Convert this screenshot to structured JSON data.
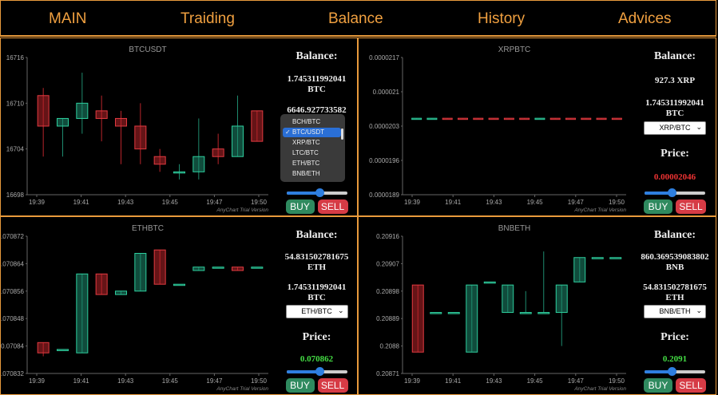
{
  "nav": [
    "MAIN",
    "Traiding",
    "Balance",
    "History",
    "Advices"
  ],
  "colors": {
    "up": "#1e8a6e",
    "down": "#b8242a",
    "accent": "#e89a3c",
    "green_price": "#44dd44",
    "red_price": "#ee3333"
  },
  "watermark": "AnyChart Trial Version",
  "dropdown": {
    "items": [
      "BCH/BTC",
      "BTC/USDT",
      "XRP/BTC",
      "LTC/BTC",
      "ETH/BTC",
      "BNB/ETH"
    ],
    "selected": "BTC/USDT"
  },
  "panels": [
    {
      "id": "btcusdt",
      "title": "BTCUSDT",
      "balance_title": "Balance:",
      "balance_1": "1.745311992041",
      "unit_1": "BTC",
      "balance_2": "6646.927733582",
      "unit_2": "",
      "select": "BTC/USDT",
      "price_title": "Price:",
      "price": "",
      "buy": "BUY",
      "sell": "SELL",
      "slider": 0.55,
      "chart_data": {
        "type": "candlestick",
        "ylim": [
          16698,
          16716
        ],
        "yticks": [
          "16716",
          "16710",
          "16704",
          "16698"
        ],
        "yvals": [
          16716,
          16710,
          16704,
          16698
        ],
        "xticks": [
          "19:39",
          "19:41",
          "19:43",
          "19:45",
          "19:47",
          "19:50"
        ],
        "candles": [
          {
            "o": 16711,
            "c": 16707,
            "h": 16712,
            "l": 16703
          },
          {
            "o": 16707,
            "c": 16708,
            "h": 16708,
            "l": 16703
          },
          {
            "o": 16708,
            "c": 16710,
            "h": 16714,
            "l": 16706
          },
          {
            "o": 16709,
            "c": 16708,
            "h": 16711,
            "l": 16705
          },
          {
            "o": 16708,
            "c": 16707,
            "h": 16709,
            "l": 16702
          },
          {
            "o": 16707,
            "c": 16704,
            "h": 16710,
            "l": 16702
          },
          {
            "o": 16703,
            "c": 16702,
            "h": 16704,
            "l": 16701
          },
          {
            "o": 16701,
            "c": 16701,
            "h": 16702,
            "l": 16700
          },
          {
            "o": 16701,
            "c": 16703,
            "h": 16708,
            "l": 16700
          },
          {
            "o": 16704,
            "c": 16703,
            "h": 16706,
            "l": 16702
          },
          {
            "o": 16703,
            "c": 16707,
            "h": 16711,
            "l": 16703
          },
          {
            "o": 16709,
            "c": 16705,
            "h": 16709,
            "l": 16705
          }
        ]
      }
    },
    {
      "id": "xrpbtc",
      "title": "XRPBTC",
      "balance_title": "Balance:",
      "balance_1": "927.3 XRP",
      "unit_1": "",
      "balance_2": "1.745311992041",
      "unit_2": "BTC",
      "select": "XRP/BTC",
      "price_title": "Price:",
      "price": "0.00002046",
      "buy": "BUY",
      "sell": "SELL",
      "slider": 0.45,
      "chart_data": {
        "type": "candlestick",
        "ylim": [
          1.89e-05,
          2.17e-05
        ],
        "yticks": [
          "0.0000217",
          "0.000021",
          "0.0000203",
          "0.0000196",
          "0.0000189"
        ],
        "yvals": [
          2.17e-05,
          2.1e-05,
          2.03e-05,
          1.96e-05,
          1.89e-05
        ],
        "xticks": [
          "19:39",
          "19:41",
          "19:43",
          "19:45",
          "19:47",
          "19:50"
        ],
        "candles": [
          {
            "o": 2.045e-05,
            "c": 2.046e-05,
            "h": 2.046e-05,
            "l": 2.045e-05
          },
          {
            "o": 2.045e-05,
            "c": 2.046e-05,
            "h": 2.046e-05,
            "l": 2.045e-05
          },
          {
            "o": 2.046e-05,
            "c": 2.045e-05,
            "h": 2.046e-05,
            "l": 2.045e-05
          },
          {
            "o": 2.046e-05,
            "c": 2.045e-05,
            "h": 2.046e-05,
            "l": 2.045e-05
          },
          {
            "o": 2.046e-05,
            "c": 2.045e-05,
            "h": 2.046e-05,
            "l": 2.045e-05
          },
          {
            "o": 2.046e-05,
            "c": 2.045e-05,
            "h": 2.046e-05,
            "l": 2.045e-05
          },
          {
            "o": 2.046e-05,
            "c": 2.045e-05,
            "h": 2.046e-05,
            "l": 2.045e-05
          },
          {
            "o": 2.046e-05,
            "c": 2.045e-05,
            "h": 2.046e-05,
            "l": 2.045e-05
          },
          {
            "o": 2.045e-05,
            "c": 2.046e-05,
            "h": 2.046e-05,
            "l": 2.045e-05
          },
          {
            "o": 2.046e-05,
            "c": 2.045e-05,
            "h": 2.046e-05,
            "l": 2.045e-05
          },
          {
            "o": 2.046e-05,
            "c": 2.045e-05,
            "h": 2.046e-05,
            "l": 2.045e-05
          },
          {
            "o": 2.046e-05,
            "c": 2.045e-05,
            "h": 2.046e-05,
            "l": 2.045e-05
          },
          {
            "o": 2.046e-05,
            "c": 2.045e-05,
            "h": 2.046e-05,
            "l": 2.045e-05
          },
          {
            "o": 2.046e-05,
            "c": 2.045e-05,
            "h": 2.046e-05,
            "l": 2.045e-05
          }
        ]
      }
    },
    {
      "id": "ethbtc",
      "title": "ETHBTC",
      "balance_title": "Balance:",
      "balance_1": "54.831502781675",
      "unit_1": "ETH",
      "balance_2": "1.745311992041",
      "unit_2": "BTC",
      "select": "ETH/BTC",
      "price_title": "Price:",
      "price": "0.070862",
      "buy": "BUY",
      "sell": "SELL",
      "slider": 0.55,
      "chart_data": {
        "type": "candlestick",
        "ylim": [
          0.070832,
          0.070872
        ],
        "yticks": [
          "0.070872",
          "0.070864",
          "0.070856",
          "0.070848",
          "0.07084",
          "0.070832"
        ],
        "yvals": [
          0.070872,
          0.070864,
          0.070856,
          0.070848,
          0.07084,
          0.070832
        ],
        "xticks": [
          "19:39",
          "19:41",
          "19:43",
          "19:45",
          "19:47",
          "19:50"
        ],
        "candles": [
          {
            "o": 0.070841,
            "c": 0.070838,
            "h": 0.070841,
            "l": 0.070837
          },
          {
            "o": 0.070839,
            "c": 0.070839,
            "h": 0.070839,
            "l": 0.070839
          },
          {
            "o": 0.070838,
            "c": 0.070861,
            "h": 0.070861,
            "l": 0.070838
          },
          {
            "o": 0.070861,
            "c": 0.070855,
            "h": 0.070861,
            "l": 0.070855
          },
          {
            "o": 0.070855,
            "c": 0.070856,
            "h": 0.070856,
            "l": 0.070855
          },
          {
            "o": 0.070856,
            "c": 0.070867,
            "h": 0.070867,
            "l": 0.070856
          },
          {
            "o": 0.070868,
            "c": 0.070858,
            "h": 0.070868,
            "l": 0.070858
          },
          {
            "o": 0.070858,
            "c": 0.070858,
            "h": 0.070858,
            "l": 0.070858
          },
          {
            "o": 0.070862,
            "c": 0.070863,
            "h": 0.070863,
            "l": 0.070862
          },
          {
            "o": 0.070863,
            "c": 0.070863,
            "h": 0.070863,
            "l": 0.070863
          },
          {
            "o": 0.070863,
            "c": 0.070862,
            "h": 0.070863,
            "l": 0.070862
          },
          {
            "o": 0.070863,
            "c": 0.070863,
            "h": 0.070863,
            "l": 0.070863
          }
        ]
      }
    },
    {
      "id": "bnbeth",
      "title": "BNBETH",
      "balance_title": "Balance:",
      "balance_1": "860.369539083802",
      "unit_1": "BNB",
      "balance_2": "54.831502781675",
      "unit_2": "ETH",
      "select": "BNB/ETH",
      "price_title": "Price:",
      "price": "0.2091",
      "buy": "BUY",
      "sell": "SELL",
      "slider": 0.45,
      "chart_data": {
        "type": "candlestick",
        "ylim": [
          0.20871,
          0.20916
        ],
        "yticks": [
          "0.20916",
          "0.20907",
          "0.20898",
          "0.20889",
          "0.2088",
          "0.20871"
        ],
        "yvals": [
          0.20916,
          0.20907,
          0.20898,
          0.20889,
          0.2088,
          0.20871
        ],
        "xticks": [
          "19:39",
          "19:41",
          "19:43",
          "19:45",
          "19:47",
          "19:50"
        ],
        "candles": [
          {
            "o": 0.209,
            "c": 0.20878,
            "h": 0.209,
            "l": 0.20878
          },
          {
            "o": 0.20891,
            "c": 0.20891,
            "h": 0.20891,
            "l": 0.20891
          },
          {
            "o": 0.20891,
            "c": 0.20891,
            "h": 0.20891,
            "l": 0.20891
          },
          {
            "o": 0.20878,
            "c": 0.209,
            "h": 0.209,
            "l": 0.20878
          },
          {
            "o": 0.20901,
            "c": 0.20901,
            "h": 0.20901,
            "l": 0.20901
          },
          {
            "o": 0.20891,
            "c": 0.209,
            "h": 0.209,
            "l": 0.20891
          },
          {
            "o": 0.20891,
            "c": 0.20891,
            "h": 0.20898,
            "l": 0.20891
          },
          {
            "o": 0.20891,
            "c": 0.20891,
            "h": 0.20911,
            "l": 0.20891
          },
          {
            "o": 0.20891,
            "c": 0.209,
            "h": 0.209,
            "l": 0.2088
          },
          {
            "o": 0.20901,
            "c": 0.20909,
            "h": 0.20909,
            "l": 0.20901
          },
          {
            "o": 0.20909,
            "c": 0.20909,
            "h": 0.20909,
            "l": 0.20909
          },
          {
            "o": 0.20909,
            "c": 0.20909,
            "h": 0.20909,
            "l": 0.20909
          }
        ]
      }
    }
  ]
}
